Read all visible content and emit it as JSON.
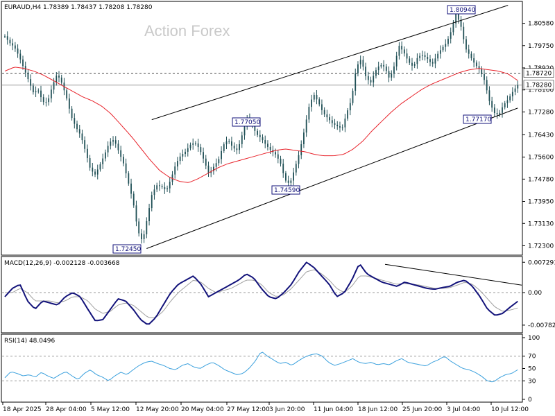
{
  "header": {
    "symbol": "EURAUD,H4",
    "ohlc": "1.78389 1.78437 1.78208 1.78280"
  },
  "watermark": "Action Forex",
  "colors": {
    "candle": "#1f4f55",
    "ma": "#e8222a",
    "macd": "#12127a",
    "signal": "#a0a0a0",
    "rsi": "#3aa0dd",
    "grid": "#9a9a9a",
    "label_box": "#12127a"
  },
  "chart_data": [
    {
      "type": "candlestick",
      "title": "EURAUD,H4",
      "ylim": [
        1.7195,
        1.8137
      ],
      "price_ticks": [
        "1.80580",
        "1.79750",
        "1.78920",
        "1.78100",
        "1.77280",
        "1.76430",
        "1.75600",
        "1.74780",
        "1.73950",
        "1.73130",
        "1.72300"
      ],
      "x_tick_labels": [
        "18 Apr 2025",
        "28 Apr 04:00",
        "5 May 12:00",
        "12 May 20:00",
        "20 May 04:00",
        "27 May 12:00",
        "3 Jun 20:00",
        "11 Jun 04:00",
        "18 Jun 12:00",
        "25 Jun 20:00",
        "3 Jul 04:00",
        "10 Jul 12:00"
      ],
      "price_path": [
        1.801,
        1.7985,
        1.797,
        1.7935,
        1.789,
        1.7845,
        1.78,
        1.781,
        1.7765,
        1.7765,
        1.7825,
        1.787,
        1.7835,
        1.778,
        1.771,
        1.767,
        1.764,
        1.758,
        1.7515,
        1.7495,
        1.753,
        1.757,
        1.7615,
        1.7625,
        1.758,
        1.7535,
        1.7465,
        1.7395,
        1.7285,
        1.7245,
        1.7335,
        1.7425,
        1.7455,
        1.745,
        1.7435,
        1.748,
        1.7535,
        1.7565,
        1.758,
        1.7605,
        1.7615,
        1.759,
        1.7545,
        1.7495,
        1.7525,
        1.755,
        1.7605,
        1.7625,
        1.7595,
        1.7585,
        1.7645,
        1.7705,
        1.768,
        1.7645,
        1.763,
        1.7605,
        1.7585,
        1.757,
        1.754,
        1.7475,
        1.7459,
        1.7515,
        1.7575,
        1.7655,
        1.7745,
        1.7795,
        1.7765,
        1.7725,
        1.7705,
        1.7685,
        1.7675,
        1.7665,
        1.7725,
        1.7775,
        1.7895,
        1.7925,
        1.786,
        1.7835,
        1.788,
        1.7905,
        1.7895,
        1.785,
        1.79,
        1.7975,
        1.795,
        1.7915,
        1.7895,
        1.7935,
        1.794,
        1.7925,
        1.7905,
        1.794,
        1.7965,
        1.7985,
        1.803,
        1.8094,
        1.805,
        1.7965,
        1.7935,
        1.7905,
        1.7885,
        1.7845,
        1.777,
        1.7725,
        1.7717,
        1.7755,
        1.7775,
        1.7805,
        1.7828
      ],
      "ma_path": [
        1.788,
        1.7895,
        1.789,
        1.788,
        1.7865,
        1.7845,
        1.7825,
        1.7805,
        1.7785,
        1.777,
        1.775,
        1.772,
        1.768,
        1.764,
        1.7595,
        1.755,
        1.751,
        1.7485,
        1.747,
        1.7465,
        1.748,
        1.75,
        1.752,
        1.7535,
        1.7545,
        1.7555,
        1.7565,
        1.7575,
        1.7585,
        1.759,
        1.7585,
        1.758,
        1.757,
        1.7565,
        1.7565,
        1.757,
        1.759,
        1.762,
        1.766,
        1.7695,
        1.773,
        1.776,
        1.7785,
        1.781,
        1.783,
        1.7845,
        1.786,
        1.7875,
        1.7885,
        1.789,
        1.7885,
        1.788,
        1.787,
        1.7845
      ],
      "channel": {
        "lower": [
          [
            1.7245,
            0
          ],
          [
            1.7717,
            1
          ]
        ],
        "upper_start": 1.7705,
        "upper_end": 1.8125
      },
      "current_price": "1.78280",
      "ma_price": "1.78720",
      "annotations": [
        "1.80940",
        "1.77050",
        "1.74590",
        "1.72450",
        "1.77170"
      ]
    },
    {
      "type": "line",
      "title": "MACD(12,26,9) -0.002128 -0.003668",
      "yticks": [
        "0.007291",
        "0.00",
        "-0.00782"
      ],
      "series": [
        {
          "values": [
            -0.001,
            0.001,
            0.002,
            -0.002,
            -0.004,
            -0.002,
            -0.0025,
            -0.003,
            -0.001,
            0.0,
            -0.001,
            -0.004,
            -0.0068,
            -0.0065,
            -0.004,
            -0.0015,
            -0.002,
            -0.004,
            -0.0065,
            -0.0078,
            -0.006,
            -0.003,
            0.0,
            0.002,
            0.003,
            0.004,
            0.002,
            -0.001,
            0.0,
            0.001,
            0.002,
            0.003,
            0.0045,
            0.0035,
            0.001,
            -0.001,
            -0.0015,
            0.0,
            0.002,
            0.005,
            0.0073,
            0.006,
            0.004,
            0.002,
            -0.001,
            0.0,
            0.003,
            0.007,
            0.0045,
            0.0035,
            0.0025,
            0.002,
            0.0015,
            0.0025,
            0.002,
            0.0015,
            0.001,
            0.0008,
            0.0012,
            0.0015,
            0.0025,
            0.003,
            0.0015,
            -0.001,
            -0.004,
            -0.0055,
            -0.005,
            -0.0035,
            -0.0021
          ]
        },
        {
          "values": [
            0.0,
            0.0,
            0.001,
            0.0,
            -0.002,
            -0.002,
            -0.002,
            -0.0025,
            -0.002,
            -0.001,
            -0.001,
            -0.002,
            -0.004,
            -0.005,
            -0.0045,
            -0.003,
            -0.0025,
            -0.003,
            -0.0045,
            -0.006,
            -0.006,
            -0.0045,
            -0.002,
            0.0,
            0.0015,
            0.003,
            0.0025,
            0.001,
            0.0,
            0.0005,
            0.001,
            0.002,
            0.003,
            0.003,
            0.002,
            0.0,
            -0.001,
            -0.0005,
            0.001,
            0.003,
            0.005,
            0.0055,
            0.0045,
            0.003,
            0.001,
            0.0,
            0.0015,
            0.004,
            0.004,
            0.0035,
            0.003,
            0.0025,
            0.002,
            0.0022,
            0.002,
            0.0018,
            0.0014,
            0.001,
            0.001,
            0.0012,
            0.0018,
            0.0025,
            0.002,
            0.0005,
            -0.0015,
            -0.0035,
            -0.0045,
            -0.0042,
            -0.0037
          ]
        }
      ],
      "ylim": [
        -0.0095,
        0.0085
      ]
    },
    {
      "type": "line",
      "title": "RSI(14) 48.0496",
      "yticks": [
        "100",
        "70",
        "50",
        "30",
        "0"
      ],
      "ylim": [
        0,
        100
      ],
      "series": [
        {
          "values": [
            35,
            45,
            42,
            38,
            40,
            36,
            44,
            38,
            34,
            40,
            45,
            38,
            32,
            42,
            48,
            40,
            36,
            30,
            38,
            44,
            40,
            48,
            55,
            60,
            62,
            58,
            55,
            50,
            48,
            55,
            58,
            52,
            50,
            56,
            60,
            55,
            48,
            44,
            40,
            42,
            50,
            62,
            78,
            70,
            64,
            58,
            60,
            55,
            62,
            68,
            72,
            74,
            70,
            60,
            55,
            58,
            62,
            66,
            60,
            58,
            60,
            56,
            58,
            56,
            62,
            66,
            60,
            58,
            56,
            54,
            60,
            64,
            70,
            62,
            56,
            50,
            48,
            44,
            38,
            30,
            28,
            35,
            40,
            42,
            48
          ]
        }
      ]
    }
  ]
}
